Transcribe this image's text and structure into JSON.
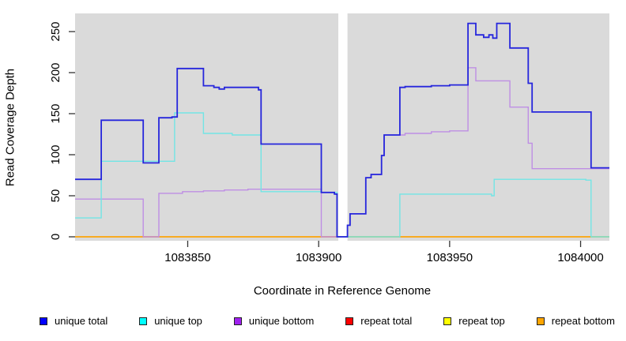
{
  "figure": {
    "xlabel": "Coordinate in Reference Genome",
    "ylabel": "Read Coverage Depth"
  },
  "chart_data": {
    "type": "line",
    "title": "",
    "xlabel": "Coordinate in Reference Genome",
    "ylabel": "Read Coverage Depth",
    "xlim": [
      1083807,
      1084011
    ],
    "ylim": [
      0,
      272
    ],
    "x_ticks": [
      1083850,
      1083900,
      1083950,
      1084000
    ],
    "y_ticks": [
      0,
      50,
      100,
      150,
      200,
      250
    ],
    "grid": false,
    "plot_bg": "#DADADA",
    "gap_band": {
      "x_start": 1083907.5,
      "x_end": 1083911,
      "color": "#FFFFFF"
    },
    "step_mode": "after",
    "legend_position": "bottom",
    "series": [
      {
        "name": "repeat total",
        "legend_color": "#FF0000",
        "line_color": "#DD2222",
        "width": 1.4,
        "points": [
          [
            1083807,
            0
          ],
          [
            1084011,
            0
          ]
        ]
      },
      {
        "name": "repeat top",
        "legend_color": "#FFFF00",
        "line_color": "#EEEE22",
        "width": 1.4,
        "points": [
          [
            1083807,
            0
          ],
          [
            1084011,
            0
          ]
        ]
      },
      {
        "name": "repeat bottom",
        "legend_color": "#FFA500",
        "line_color": "#FFA513",
        "width": 1.4,
        "points": [
          [
            1083807,
            0
          ],
          [
            1084011,
            0
          ]
        ]
      },
      {
        "name": "unique bottom",
        "legend_color": "#A020F0",
        "line_color": "#BE8EE4",
        "width": 1.4,
        "points": [
          [
            1083807,
            46
          ],
          [
            1083833,
            0
          ],
          [
            1083839,
            53
          ],
          [
            1083848,
            55
          ],
          [
            1083856,
            56
          ],
          [
            1083864,
            57
          ],
          [
            1083873,
            58
          ],
          [
            1083901,
            0
          ],
          [
            1083911,
            14
          ],
          [
            1083912,
            28
          ],
          [
            1083918,
            72
          ],
          [
            1083920,
            76
          ],
          [
            1083924,
            99
          ],
          [
            1083925,
            124
          ],
          [
            1083933,
            126
          ],
          [
            1083943,
            128
          ],
          [
            1083950,
            129
          ],
          [
            1083957,
            206
          ],
          [
            1083960,
            190
          ],
          [
            1083973,
            158
          ],
          [
            1083980,
            114
          ],
          [
            1083981.5,
            83
          ],
          [
            1084011,
            83
          ]
        ]
      },
      {
        "name": "unique top",
        "legend_color": "#00FFFF",
        "line_color": "#72E5E5",
        "width": 1.4,
        "points": [
          [
            1083807,
            23
          ],
          [
            1083817,
            92
          ],
          [
            1083845,
            151
          ],
          [
            1083856,
            126
          ],
          [
            1083867,
            124
          ],
          [
            1083878,
            55
          ],
          [
            1083901,
            54
          ],
          [
            1083907,
            0
          ],
          [
            1083931,
            52
          ],
          [
            1083966,
            50
          ],
          [
            1083967,
            70
          ],
          [
            1084002,
            69
          ],
          [
            1084004,
            0
          ],
          [
            1084011,
            0
          ]
        ]
      },
      {
        "name": "unique total",
        "legend_color": "#0000FF",
        "line_color": "#2626DC",
        "width": 1.8,
        "points": [
          [
            1083807,
            70
          ],
          [
            1083817,
            142
          ],
          [
            1083833,
            90
          ],
          [
            1083839,
            145
          ],
          [
            1083844,
            146
          ],
          [
            1083846,
            205
          ],
          [
            1083856,
            184
          ],
          [
            1083860,
            182
          ],
          [
            1083862,
            180
          ],
          [
            1083864,
            182
          ],
          [
            1083877,
            179
          ],
          [
            1083878,
            113
          ],
          [
            1083901,
            54
          ],
          [
            1083906,
            52
          ],
          [
            1083907,
            0
          ],
          [
            1083911,
            14
          ],
          [
            1083912,
            28
          ],
          [
            1083918,
            72
          ],
          [
            1083920,
            76
          ],
          [
            1083924,
            99
          ],
          [
            1083925,
            124
          ],
          [
            1083931,
            182
          ],
          [
            1083933,
            183
          ],
          [
            1083943,
            184
          ],
          [
            1083950,
            185
          ],
          [
            1083957,
            260
          ],
          [
            1083960,
            246
          ],
          [
            1083963,
            243
          ],
          [
            1083965,
            246
          ],
          [
            1083966.5,
            242
          ],
          [
            1083968,
            260
          ],
          [
            1083973,
            230
          ],
          [
            1083980,
            187
          ],
          [
            1083981.5,
            152
          ],
          [
            1084004,
            84
          ],
          [
            1084011,
            84
          ]
        ]
      }
    ],
    "legend": [
      {
        "label": "unique total",
        "color": "#0000FF"
      },
      {
        "label": "unique top",
        "color": "#00FFFF"
      },
      {
        "label": "unique bottom",
        "color": "#A020F0"
      },
      {
        "label": "repeat total",
        "color": "#FF0000"
      },
      {
        "label": "repeat top",
        "color": "#FFFF00"
      },
      {
        "label": "repeat bottom",
        "color": "#FFA500"
      }
    ]
  }
}
